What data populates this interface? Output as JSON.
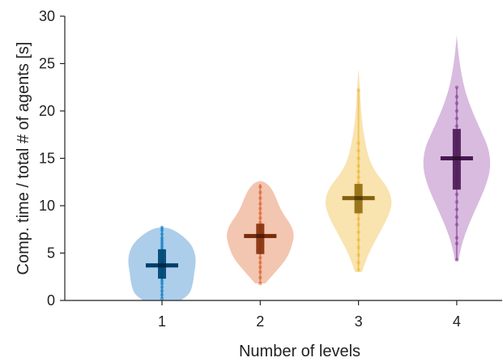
{
  "chart_data": {
    "type": "violin",
    "xlabel": "Number of levels",
    "ylabel": "Comp. time / total # of agents [s]",
    "categories": [
      "1",
      "2",
      "3",
      "4"
    ],
    "ylim": [
      0,
      30
    ],
    "yticks": [
      0,
      5,
      10,
      15,
      20,
      25,
      30
    ],
    "grid": false,
    "series": [
      {
        "category": "1",
        "color": "#0072BD",
        "fill": "#a3c9e8",
        "median": 3.7,
        "q1": 2.3,
        "q3": 5.4,
        "min": 0.2,
        "max": 7.8,
        "profile": [
          [
            0.0,
            0.55
          ],
          [
            0.5,
            0.75
          ],
          [
            1.0,
            0.85
          ],
          [
            2.0,
            0.92
          ],
          [
            3.0,
            0.95
          ],
          [
            4.0,
            1.0
          ],
          [
            5.0,
            0.97
          ],
          [
            6.0,
            0.85
          ],
          [
            7.0,
            0.55
          ],
          [
            7.7,
            0.2
          ]
        ],
        "points": [
          0.2,
          0.6,
          1.0,
          1.4,
          1.8,
          2.1,
          2.4,
          2.7,
          3.0,
          3.3,
          3.6,
          3.9,
          4.2,
          4.5,
          4.8,
          5.1,
          5.4,
          5.7,
          6.0,
          6.3,
          6.6,
          7.0,
          7.4,
          7.7
        ]
      },
      {
        "category": "2",
        "color": "#D95319",
        "fill": "#f2c0a8",
        "median": 6.8,
        "q1": 4.9,
        "q3": 8.1,
        "min": 1.8,
        "max": 12.3,
        "profile": [
          [
            1.8,
            0.15
          ],
          [
            3.0,
            0.45
          ],
          [
            4.5,
            0.8
          ],
          [
            6.0,
            0.95
          ],
          [
            7.0,
            1.0
          ],
          [
            8.0,
            0.9
          ],
          [
            9.0,
            0.7
          ],
          [
            10.0,
            0.55
          ],
          [
            11.0,
            0.45
          ],
          [
            12.0,
            0.3
          ],
          [
            12.6,
            0.1
          ]
        ],
        "points": [
          1.8,
          2.4,
          3.0,
          3.5,
          4.0,
          4.5,
          5.0,
          5.4,
          5.8,
          6.2,
          6.6,
          7.0,
          7.4,
          7.8,
          8.2,
          8.7,
          9.2,
          9.7,
          10.2,
          10.8,
          11.4,
          12.0
        ]
      },
      {
        "category": "3",
        "color": "#EDB120",
        "fill": "#f8e0a6",
        "median": 10.8,
        "q1": 9.2,
        "q3": 12.3,
        "min": 3.2,
        "max": 22.2,
        "profile": [
          [
            3.0,
            0.1
          ],
          [
            5.0,
            0.3
          ],
          [
            7.0,
            0.6
          ],
          [
            9.0,
            0.9
          ],
          [
            10.5,
            1.0
          ],
          [
            12.0,
            0.85
          ],
          [
            13.5,
            0.5
          ],
          [
            15.0,
            0.3
          ],
          [
            17.0,
            0.18
          ],
          [
            19.0,
            0.1
          ],
          [
            21.0,
            0.06
          ],
          [
            23.0,
            0.03
          ],
          [
            24.5,
            0.0
          ]
        ],
        "points": [
          3.2,
          4.0,
          4.8,
          5.6,
          6.4,
          7.2,
          8.0,
          8.6,
          9.2,
          9.8,
          10.4,
          10.9,
          11.4,
          11.9,
          12.4,
          13.0,
          13.6,
          14.2,
          15.0,
          15.8,
          16.6,
          22.2
        ]
      },
      {
        "category": "4",
        "color": "#7E2F8E",
        "fill": "#d5b4dc",
        "median": 15.0,
        "q1": 11.7,
        "q3": 18.1,
        "min": 4.3,
        "max": 22.5,
        "profile": [
          [
            4.2,
            0.05
          ],
          [
            6.0,
            0.15
          ],
          [
            8.0,
            0.35
          ],
          [
            10.0,
            0.6
          ],
          [
            12.0,
            0.85
          ],
          [
            14.0,
            1.0
          ],
          [
            16.0,
            0.95
          ],
          [
            18.0,
            0.7
          ],
          [
            20.0,
            0.45
          ],
          [
            22.0,
            0.25
          ],
          [
            24.0,
            0.13
          ],
          [
            26.0,
            0.05
          ],
          [
            28.0,
            0.0
          ]
        ],
        "points": [
          4.3,
          6.0,
          6.6,
          8.0,
          8.8,
          9.6,
          10.4,
          11.2,
          12.0,
          12.8,
          13.6,
          14.4,
          15.2,
          16.0,
          16.8,
          17.6,
          18.4,
          19.2,
          20.0,
          20.8,
          21.5,
          22.5
        ]
      }
    ]
  }
}
